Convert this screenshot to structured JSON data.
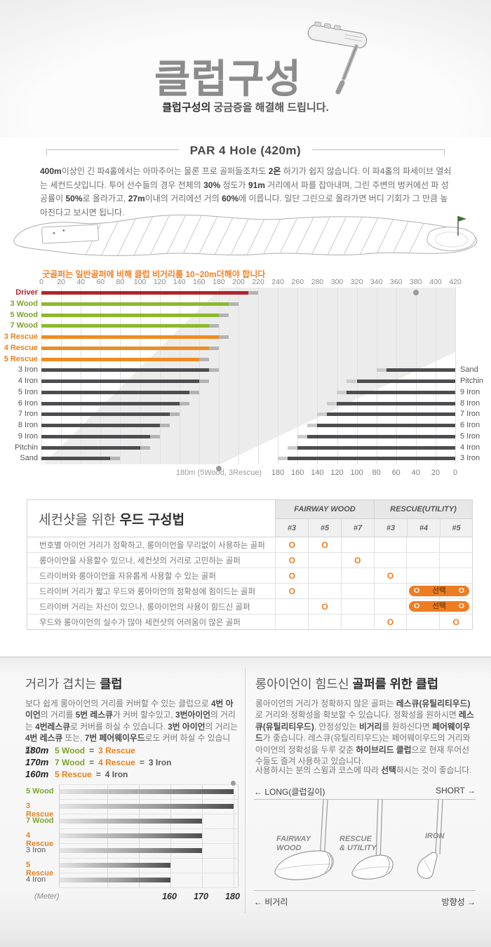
{
  "colors": {
    "driver": "#b3232b",
    "wood": "#8cb92c",
    "rescue": "#ef8c21",
    "iron": "#4d4d50",
    "driver_label": "#b3232b",
    "wood_label": "#7da32b",
    "rescue_label": "#e8821e",
    "iron_label": "#555555",
    "cap": "#b3b3b3",
    "cap_light": "#cbcbcb",
    "accent": "#ee7d22",
    "note": "#f08228"
  },
  "header": {
    "title": "클럽구성",
    "subtitle_strong": "클럽구성의",
    "subtitle_rest": " 궁금증을 해결해 드립니다."
  },
  "par_section": {
    "heading": "PAR 4 Hole (420m)",
    "paragraph": [
      {
        "t": "400m",
        "b": true
      },
      {
        "t": "이상인 긴 파4홀에서는 아마추어는 물론 프로 골퍼들조차도 "
      },
      {
        "t": "2온",
        "b": true
      },
      {
        "t": " 하기가 쉽지 않습니다. 이 파4홀의 파세이브 열쇠는 세컨드샷입니다. 투어 선수들의 경우 전체의 "
      },
      {
        "t": "30%",
        "b": true
      },
      {
        "t": " 정도가 "
      },
      {
        "t": "91m",
        "b": true
      },
      {
        "t": " 거리에서 파를 잡아내며, 그린 주변의 벙커에선 파 성공률이 "
      },
      {
        "t": "50%",
        "b": true
      },
      {
        "t": "로 올라가고, "
      },
      {
        "t": "27m",
        "b": true
      },
      {
        "t": "이내의 거리에선 거의 "
      },
      {
        "t": "60%",
        "b": true
      },
      {
        "t": "에 이릅니다. 일단 그린으로 올라가면 버디 기회가 그 만큼 높아진다고 보시면 됩니다."
      }
    ],
    "note": "굿골퍼는 일반골퍼에 비해 클럽 비거리를 10~20m더해야 합니다"
  },
  "chart_data": [
    {
      "id": "club-distance-chart",
      "type": "bar",
      "orientation": "horizontal",
      "unit": "m",
      "x_axis_top": {
        "min": 0,
        "max": 420,
        "step": 20
      },
      "x_axis_bottom_right": {
        "min": 0,
        "max": 180,
        "step": 20,
        "direction": "right-to-left",
        "meaning": "remaining distance to 420m green"
      },
      "annotation": "180m (5Wood, 3Rescue)",
      "marker_dots_m": [
        380,
        180
      ],
      "series_from_tee": [
        {
          "club": "Driver",
          "type": "driver",
          "carry_m": 210,
          "max_m": 220
        },
        {
          "club": "3 Wood",
          "type": "wood",
          "carry_m": 190,
          "max_m": 200
        },
        {
          "club": "5 Wood",
          "type": "wood",
          "carry_m": 180,
          "max_m": 190
        },
        {
          "club": "7 Wood",
          "type": "wood",
          "carry_m": 170,
          "max_m": 180
        },
        {
          "club": "3 Rescue",
          "type": "rescue",
          "carry_m": 180,
          "max_m": 190
        },
        {
          "club": "4 Rescue",
          "type": "rescue",
          "carry_m": 170,
          "max_m": 180
        },
        {
          "club": "5 Rescue",
          "type": "rescue",
          "carry_m": 160,
          "max_m": 170
        },
        {
          "club": "3 Iron",
          "type": "iron",
          "carry_m": 170,
          "max_m": 180
        },
        {
          "club": "4 Iron",
          "type": "iron",
          "carry_m": 160,
          "max_m": 170
        },
        {
          "club": "5 Iron",
          "type": "iron",
          "carry_m": 150,
          "max_m": 160
        },
        {
          "club": "6 Iron",
          "type": "iron",
          "carry_m": 140,
          "max_m": 150
        },
        {
          "club": "7 Iron",
          "type": "iron",
          "carry_m": 130,
          "max_m": 140
        },
        {
          "club": "8 Iron",
          "type": "iron",
          "carry_m": 120,
          "max_m": 130
        },
        {
          "club": "9 Iron",
          "type": "iron",
          "carry_m": 110,
          "max_m": 120
        },
        {
          "club": "Pitchin",
          "type": "iron",
          "carry_m": 100,
          "max_m": 110
        },
        {
          "club": "Sand",
          "type": "iron",
          "carry_m": 70,
          "max_m": 80
        }
      ],
      "series_to_green": [
        {
          "club": "Sand",
          "type": "iron",
          "carry_m": 70,
          "max_m": 80
        },
        {
          "club": "Pitchin",
          "type": "iron",
          "carry_m": 100,
          "max_m": 110
        },
        {
          "club": "9 Iron",
          "type": "iron",
          "carry_m": 110,
          "max_m": 120
        },
        {
          "club": "8 Iron",
          "type": "iron",
          "carry_m": 120,
          "max_m": 130
        },
        {
          "club": "7 Iron",
          "type": "iron",
          "carry_m": 130,
          "max_m": 140
        },
        {
          "club": "6 Iron",
          "type": "iron",
          "carry_m": 140,
          "max_m": 150
        },
        {
          "club": "5 Iron",
          "type": "iron",
          "carry_m": 150,
          "max_m": 160
        },
        {
          "club": "4 Iron",
          "type": "iron",
          "carry_m": 160,
          "max_m": 170
        },
        {
          "club": "3 Iron",
          "type": "iron",
          "carry_m": 170,
          "max_m": 180
        }
      ]
    },
    {
      "id": "overlap-chart",
      "type": "bar",
      "orientation": "horizontal",
      "xlabel": "(Meter)",
      "ticks": [
        160,
        170,
        180
      ],
      "xlim": [
        125,
        181
      ],
      "marker_dot_at": 180,
      "categories": [
        {
          "club": "5 Wood",
          "type": "wood",
          "value": 180
        },
        {
          "club": "3 Rescue",
          "type": "rescue",
          "value": 180
        },
        {
          "club": "7 Wood",
          "type": "wood",
          "value": 170
        },
        {
          "club": "4 Rescue",
          "type": "rescue",
          "value": 170
        },
        {
          "club": "3 Iron",
          "type": "iron",
          "value": 170
        },
        {
          "club": "5 Rescue",
          "type": "rescue",
          "value": 160
        },
        {
          "club": "4 Iron",
          "type": "iron",
          "value": 160
        }
      ]
    }
  ],
  "table": {
    "title_regular": "세컨샷을 위한 ",
    "title_bold": "우드 구성법",
    "groups": [
      {
        "label": "FAIRWAY WOOD",
        "cols": [
          "#3",
          "#5",
          "#7"
        ]
      },
      {
        "label": "RESCUE(UTILITY)",
        "cols": [
          "#3",
          "#4",
          "#5"
        ]
      }
    ],
    "mark": "O",
    "select_label": "선택",
    "rows": [
      {
        "text": "번호별 아이언 거리가 정확하고, 롱아이언을 무리없이 사용하는 골퍼",
        "marks": [
          1,
          1,
          0,
          0,
          0,
          0
        ],
        "pill": false
      },
      {
        "text": "롱아이언을 사용할수 있으나, 세컨샷의 거리로 고민하는 골퍼",
        "marks": [
          1,
          0,
          1,
          0,
          0,
          0
        ],
        "pill": false
      },
      {
        "text": "드라이버와 롱아이언을 자유롭게 사용할 수 있는 골퍼",
        "marks": [
          1,
          0,
          0,
          1,
          0,
          0
        ],
        "pill": false
      },
      {
        "text": "드라이버 거리가 짧고 우드와 롱아이언의 정확성에 힘이드는 골퍼",
        "marks": [
          1,
          0,
          0,
          0,
          0,
          0
        ],
        "pill": true
      },
      {
        "text": "드라이버 거리는 자신이 있으나, 롱아이언의 사용이 힘드신 골퍼",
        "marks": [
          0,
          1,
          0,
          0,
          0,
          0
        ],
        "pill": true
      },
      {
        "text": "우드와 롱아이언의 실수가 많아 세컨샷의 어려움이 많은 골퍼",
        "marks": [
          0,
          0,
          0,
          1,
          0,
          1
        ],
        "pill": false
      }
    ]
  },
  "bottom_left": {
    "title_regular": "거리가 겹치는 ",
    "title_bold": "클럽",
    "paragraph": [
      {
        "t": "보다 쉽게 롱아이언의 거리를 커버할 수 있는 클럽으로 "
      },
      {
        "t": "4번 아이언",
        "b": true
      },
      {
        "t": "의 거리를 "
      },
      {
        "t": "5번 레스큐",
        "b": true
      },
      {
        "t": "가 커버 할수있고, "
      },
      {
        "t": "3번아이언",
        "b": true
      },
      {
        "t": "의 거리는 "
      },
      {
        "t": "4번레스큐",
        "b": true
      },
      {
        "t": "로 커버를 하실 수 있습니다. "
      },
      {
        "t": "3번 아이언",
        "b": true
      },
      {
        "t": "의 거리는 "
      },
      {
        "t": "4번 레스큐",
        "b": true
      },
      {
        "t": " 또는, "
      },
      {
        "t": "7번 페어웨이우드",
        "b": true
      },
      {
        "t": "로도 커버 하실 수 있습니다."
      }
    ],
    "equals": "=",
    "equations": [
      {
        "distance": "180m",
        "items": [
          {
            "text": "5 Wood",
            "type": "wood"
          },
          {
            "text": "3 Rescue",
            "type": "rescue"
          }
        ]
      },
      {
        "distance": "170m",
        "items": [
          {
            "text": "7 Wood",
            "type": "wood"
          },
          {
            "text": "4 Rescue",
            "type": "rescue"
          },
          {
            "text": "3 Iron",
            "type": "iron"
          }
        ]
      },
      {
        "distance": "160m",
        "items": [
          {
            "text": "5 Rescue",
            "type": "rescue"
          },
          {
            "text": "4 Iron",
            "type": "iron"
          }
        ]
      }
    ]
  },
  "bottom_right": {
    "title_regular": "롱아이언이 힘드신 ",
    "title_bold": "골퍼를 위한 클럽",
    "para1": [
      {
        "t": "롱아이언의 거리가 정확하지 않은 골퍼는 "
      },
      {
        "t": "레스큐(유틸리티우드)",
        "b": true
      },
      {
        "t": "로 거리와 정확성을 확보할 수 있습니다. 정확성을 원하시면 "
      },
      {
        "t": "레스큐(유틸리티우드)",
        "b": true
      },
      {
        "t": ", 안정성있는 "
      },
      {
        "t": "비거리",
        "b": true
      },
      {
        "t": "를 원하신다면 "
      },
      {
        "t": "페어웨이우드",
        "b": true
      },
      {
        "t": "가 좋습니다. 레스큐(유틸리티우드)는 페어웨이우드의 거리와 아이언의 정확성을 두루 갖춘 "
      },
      {
        "t": "하이브리드 클럽",
        "b": true
      },
      {
        "t": "으로 현재 투어선수들도 즐겨 사용하고 있습니다."
      }
    ],
    "para2": [
      {
        "t": "사용하시는 분의 스윙과 코스에 따라 "
      },
      {
        "t": "선택",
        "b": true
      },
      {
        "t": "하시는 것이 좋습니다."
      }
    ],
    "diagram": {
      "long_label": "← LONG(클럽길이)",
      "short_label": "SHORT →",
      "clubs": [
        {
          "name": "FAIRWAY WOOD",
          "label": "FAIRWAY\nWOOD"
        },
        {
          "name": "RESCUE & UTILITY",
          "label": "RESCUE\n& UTILITY"
        },
        {
          "name": "IRON",
          "label": "IRON"
        }
      ],
      "distance_label": "← 비거리",
      "direction_label": "방향성 →"
    }
  }
}
